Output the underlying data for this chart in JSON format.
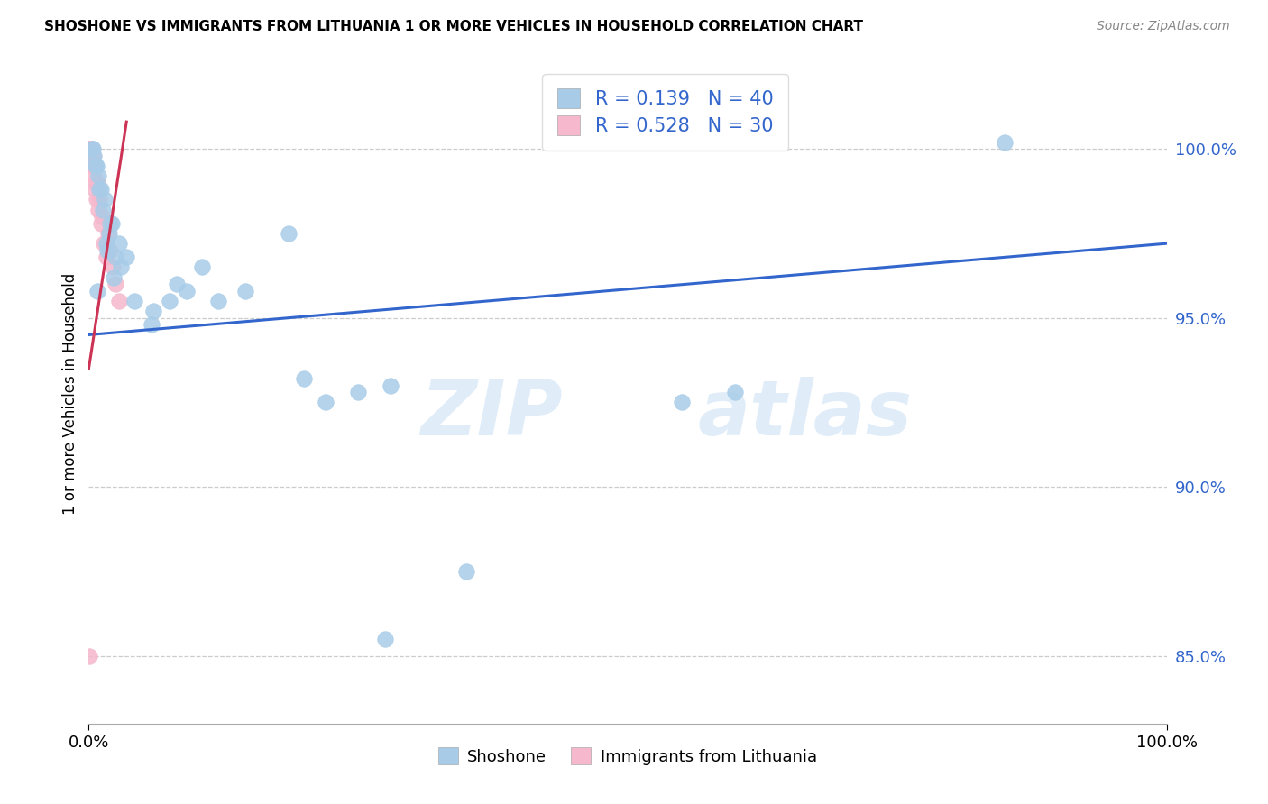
{
  "title": "SHOSHONE VS IMMIGRANTS FROM LITHUANIA 1 OR MORE VEHICLES IN HOUSEHOLD CORRELATION CHART",
  "source": "Source: ZipAtlas.com",
  "ylabel": "1 or more Vehicles in Household",
  "xlim": [
    0.0,
    100.0
  ],
  "ylim": [
    83.0,
    102.5
  ],
  "yticks": [
    85.0,
    90.0,
    95.0,
    100.0
  ],
  "ytick_labels": [
    "85.0%",
    "90.0%",
    "95.0%",
    "100.0%"
  ],
  "blue_R": 0.139,
  "blue_N": 40,
  "pink_R": 0.528,
  "pink_N": 30,
  "blue_color": "#a8cce8",
  "pink_color": "#f5b8cc",
  "blue_line_color": "#3366cc",
  "pink_line_color": "#cc3355",
  "legend_label_blue": "Shoshone",
  "legend_label_pink": "Immigrants from Lithuania",
  "watermark_zip": "ZIP",
  "watermark_atlas": "atlas",
  "blue_x": [
    0.4,
    0.9,
    1.5,
    2.1,
    2.8,
    1.1,
    0.7,
    1.9,
    0.5,
    2.5,
    1.3,
    3.0,
    1.7,
    2.3,
    4.2,
    5.8,
    7.5,
    8.2,
    9.1,
    10.5,
    12.0,
    14.5,
    0.3,
    0.6,
    1.0,
    2.0,
    3.5,
    6.0,
    20.0,
    22.0,
    25.0,
    28.0,
    35.0,
    55.0,
    60.0,
    85.0,
    0.8,
    1.6,
    18.5,
    27.5
  ],
  "blue_y": [
    100.0,
    99.2,
    98.5,
    97.8,
    97.2,
    98.8,
    99.5,
    97.5,
    99.8,
    96.8,
    98.2,
    96.5,
    97.0,
    96.2,
    95.5,
    94.8,
    95.5,
    96.0,
    95.8,
    96.5,
    95.5,
    95.8,
    100.0,
    99.5,
    98.8,
    97.8,
    96.8,
    95.2,
    93.2,
    92.5,
    92.8,
    93.0,
    87.5,
    92.5,
    92.8,
    100.2,
    95.8,
    97.2,
    97.5,
    85.5
  ],
  "pink_x": [
    0.05,
    0.1,
    0.15,
    0.2,
    0.25,
    0.3,
    0.35,
    0.4,
    0.45,
    0.5,
    0.55,
    0.6,
    0.7,
    0.8,
    0.9,
    1.0,
    1.1,
    1.2,
    1.4,
    1.6,
    1.8,
    2.0,
    2.2,
    2.5,
    2.8,
    0.08,
    0.18,
    0.28,
    0.38,
    0.05
  ],
  "pink_y": [
    100.0,
    100.0,
    100.0,
    100.0,
    100.0,
    100.0,
    99.8,
    99.5,
    99.5,
    99.2,
    98.8,
    99.0,
    98.5,
    99.0,
    98.2,
    98.5,
    97.8,
    98.0,
    97.2,
    96.8,
    97.5,
    97.0,
    96.5,
    96.0,
    95.5,
    100.0,
    100.0,
    99.5,
    99.8,
    85.0
  ],
  "blue_trend_x": [
    0.0,
    100.0
  ],
  "blue_trend_y": [
    94.5,
    97.2
  ],
  "pink_trend_x": [
    0.0,
    3.5
  ],
  "pink_trend_y": [
    93.5,
    100.8
  ]
}
